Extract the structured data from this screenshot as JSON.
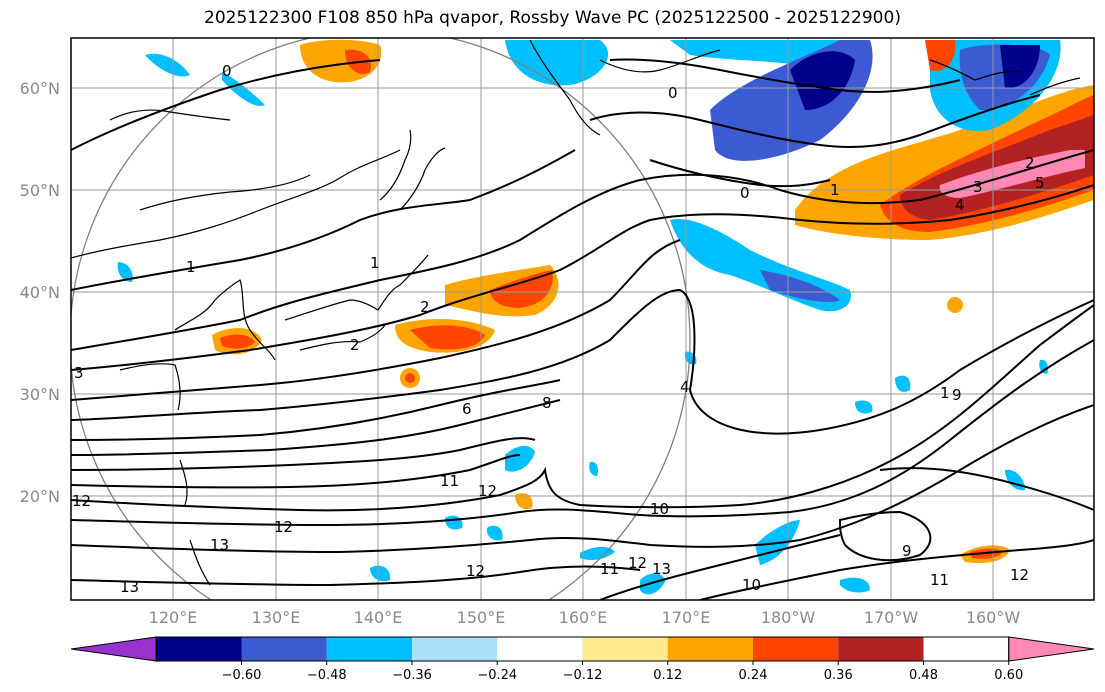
{
  "title": "2025122300 F108 850 hPa qvapor, Rossby Wave PC (2025122500 - 2025122900)",
  "lat_labels": [
    "60°N",
    "50°N",
    "40°N",
    "30°N",
    "20°N"
  ],
  "lon_labels": [
    "120°E",
    "130°E",
    "140°E",
    "150°E",
    "160°E",
    "170°E",
    "180°W",
    "170°W",
    "160°W"
  ],
  "contour_labels": [
    "0",
    "0",
    "0",
    "1",
    "1",
    "1",
    "2",
    "2",
    "2",
    "3",
    "4",
    "5",
    "3",
    "6",
    "8",
    "4",
    "1",
    "9",
    "11",
    "12",
    "12",
    "10",
    "12",
    "13",
    "11",
    "12",
    "13",
    "10",
    "9",
    "12",
    "11",
    "13",
    "12"
  ],
  "colorbar": {
    "tick_labels": [
      "−0.60",
      "−0.48",
      "−0.36",
      "−0.24",
      "−0.12",
      "0.12",
      "0.24",
      "0.36",
      "0.48",
      "0.60"
    ],
    "colors": [
      "#9932cc",
      "#00008b",
      "#3c5ad2",
      "#00bfff",
      "#abe0fa",
      "#ffffff",
      "#ffe98c",
      "#ffa500",
      "#ff4500",
      "#b22222",
      "#ff88b5"
    ]
  }
}
